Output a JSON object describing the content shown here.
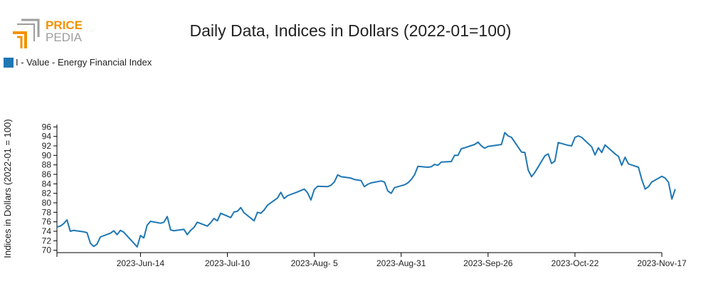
{
  "logo": {
    "text_top": "PRICE",
    "text_bottom": "PEDIA",
    "accent_color": "#f39200",
    "secondary_color": "#9d9d9c"
  },
  "chart_data": {
    "type": "line",
    "title": "Daily Data, Indices in Dollars (2022-01=100)",
    "ylabel": "Indices in Dollars (2022-01 = 100)",
    "xlabel": "",
    "ylim": [
      69.5,
      96.5
    ],
    "yticks": [
      70,
      72,
      74,
      76,
      78,
      80,
      82,
      84,
      86,
      88,
      90,
      92,
      94,
      96
    ],
    "xlim": [
      "2023-05-20",
      "2023-11-17"
    ],
    "xticks": [
      {
        "date": "2023-06-14",
        "label": "2023-Jun-14"
      },
      {
        "date": "2023-07-10",
        "label": "2023-Jul-10"
      },
      {
        "date": "2023-08-05",
        "label": "2023-Aug- 5"
      },
      {
        "date": "2023-08-31",
        "label": "2023-Aug-31"
      },
      {
        "date": "2023-09-26",
        "label": "2023-Sep-26"
      },
      {
        "date": "2023-10-22",
        "label": "2023-Oct-22"
      },
      {
        "date": "2023-11-17",
        "label": "2023-Nov-17"
      }
    ],
    "legend_position": "top-left",
    "series": [
      {
        "name": "I - Value - Energy Financial Index",
        "color": "#1f77b4",
        "points": [
          [
            "2023-05-20",
            74.9
          ],
          [
            "2023-05-21",
            75.1
          ],
          [
            "2023-05-22",
            75.6
          ],
          [
            "2023-05-23",
            76.4
          ],
          [
            "2023-05-24",
            74.0
          ],
          [
            "2023-05-25",
            74.2
          ],
          [
            "2023-05-28",
            73.9
          ],
          [
            "2023-05-29",
            73.7
          ],
          [
            "2023-05-30",
            71.5
          ],
          [
            "2023-05-31",
            70.8
          ],
          [
            "2023-06-01",
            71.3
          ],
          [
            "2023-06-02",
            72.8
          ],
          [
            "2023-06-05",
            73.6
          ],
          [
            "2023-06-06",
            74.1
          ],
          [
            "2023-06-07",
            73.3
          ],
          [
            "2023-06-08",
            74.2
          ],
          [
            "2023-06-09",
            73.8
          ],
          [
            "2023-06-12",
            71.5
          ],
          [
            "2023-06-13",
            70.7
          ],
          [
            "2023-06-14",
            73.1
          ],
          [
            "2023-06-15",
            72.6
          ],
          [
            "2023-06-16",
            75.3
          ],
          [
            "2023-06-17",
            76.1
          ],
          [
            "2023-06-20",
            75.7
          ],
          [
            "2023-06-21",
            75.9
          ],
          [
            "2023-06-22",
            77.1
          ],
          [
            "2023-06-23",
            74.3
          ],
          [
            "2023-06-24",
            74.1
          ],
          [
            "2023-06-27",
            74.4
          ],
          [
            "2023-06-28",
            73.3
          ],
          [
            "2023-06-29",
            74.2
          ],
          [
            "2023-06-30",
            74.8
          ],
          [
            "2023-07-01",
            75.9
          ],
          [
            "2023-07-04",
            75.1
          ],
          [
            "2023-07-05",
            75.8
          ],
          [
            "2023-07-06",
            76.7
          ],
          [
            "2023-07-07",
            76.2
          ],
          [
            "2023-07-08",
            77.8
          ],
          [
            "2023-07-11",
            76.9
          ],
          [
            "2023-07-12",
            78.1
          ],
          [
            "2023-07-13",
            78.2
          ],
          [
            "2023-07-14",
            79.0
          ],
          [
            "2023-07-15",
            77.9
          ],
          [
            "2023-07-18",
            76.2
          ],
          [
            "2023-07-19",
            78.0
          ],
          [
            "2023-07-20",
            77.8
          ],
          [
            "2023-07-21",
            78.5
          ],
          [
            "2023-07-22",
            79.5
          ],
          [
            "2023-07-25",
            81.0
          ],
          [
            "2023-07-26",
            82.2
          ],
          [
            "2023-07-27",
            80.9
          ],
          [
            "2023-07-28",
            81.5
          ],
          [
            "2023-07-31",
            82.3
          ],
          [
            "2023-08-01",
            82.6
          ],
          [
            "2023-08-02",
            82.9
          ],
          [
            "2023-08-03",
            82.1
          ],
          [
            "2023-08-04",
            80.6
          ],
          [
            "2023-08-05",
            82.8
          ],
          [
            "2023-08-06",
            83.5
          ],
          [
            "2023-08-09",
            83.4
          ],
          [
            "2023-08-10",
            83.7
          ],
          [
            "2023-08-11",
            84.4
          ],
          [
            "2023-08-12",
            85.9
          ],
          [
            "2023-08-13",
            85.5
          ],
          [
            "2023-08-16",
            85.2
          ],
          [
            "2023-08-17",
            84.9
          ],
          [
            "2023-08-18",
            84.8
          ],
          [
            "2023-08-19",
            84.7
          ],
          [
            "2023-08-20",
            83.4
          ],
          [
            "2023-08-21",
            83.9
          ],
          [
            "2023-08-22",
            84.2
          ],
          [
            "2023-08-25",
            84.6
          ],
          [
            "2023-08-26",
            84.4
          ],
          [
            "2023-08-27",
            82.5
          ],
          [
            "2023-08-28",
            82.0
          ],
          [
            "2023-08-29",
            83.2
          ],
          [
            "2023-09-01",
            83.8
          ],
          [
            "2023-09-02",
            84.2
          ],
          [
            "2023-09-03",
            84.9
          ],
          [
            "2023-09-04",
            85.9
          ],
          [
            "2023-09-05",
            87.7
          ],
          [
            "2023-09-08",
            87.5
          ],
          [
            "2023-09-09",
            87.6
          ],
          [
            "2023-09-10",
            88.1
          ],
          [
            "2023-09-11",
            87.9
          ],
          [
            "2023-09-12",
            88.6
          ],
          [
            "2023-09-15",
            88.7
          ],
          [
            "2023-09-16",
            90.0
          ],
          [
            "2023-09-17",
            90.0
          ],
          [
            "2023-09-18",
            91.4
          ],
          [
            "2023-09-19",
            91.6
          ],
          [
            "2023-09-22",
            92.3
          ],
          [
            "2023-09-23",
            92.8
          ],
          [
            "2023-09-24",
            92.0
          ],
          [
            "2023-09-25",
            91.5
          ],
          [
            "2023-09-26",
            91.9
          ],
          [
            "2023-09-29",
            92.2
          ],
          [
            "2023-09-30",
            92.3
          ],
          [
            "2023-10-01",
            94.8
          ],
          [
            "2023-10-02",
            94.1
          ],
          [
            "2023-10-03",
            93.8
          ],
          [
            "2023-10-06",
            90.7
          ],
          [
            "2023-10-07",
            90.6
          ],
          [
            "2023-10-08",
            86.9
          ],
          [
            "2023-10-09",
            85.5
          ],
          [
            "2023-10-10",
            86.4
          ],
          [
            "2023-10-13",
            89.9
          ],
          [
            "2023-10-14",
            90.3
          ],
          [
            "2023-10-15",
            88.3
          ],
          [
            "2023-10-16",
            88.8
          ],
          [
            "2023-10-17",
            92.7
          ],
          [
            "2023-10-20",
            92.1
          ],
          [
            "2023-10-21",
            92.0
          ],
          [
            "2023-10-22",
            93.8
          ],
          [
            "2023-10-23",
            94.1
          ],
          [
            "2023-10-24",
            93.8
          ],
          [
            "2023-10-27",
            91.8
          ],
          [
            "2023-10-28",
            90.1
          ],
          [
            "2023-10-29",
            91.6
          ],
          [
            "2023-10-30",
            90.6
          ],
          [
            "2023-10-31",
            92.2
          ],
          [
            "2023-11-03",
            90.3
          ],
          [
            "2023-11-04",
            89.8
          ],
          [
            "2023-11-05",
            87.9
          ],
          [
            "2023-11-06",
            89.6
          ],
          [
            "2023-11-07",
            88.2
          ],
          [
            "2023-11-10",
            87.5
          ],
          [
            "2023-11-11",
            84.9
          ],
          [
            "2023-11-12",
            82.9
          ],
          [
            "2023-11-13",
            83.4
          ],
          [
            "2023-11-14",
            84.4
          ],
          [
            "2023-11-17",
            85.6
          ],
          [
            "2023-11-18",
            85.2
          ],
          [
            "2023-11-19",
            84.3
          ],
          [
            "2023-11-20",
            80.8
          ],
          [
            "2023-11-21",
            82.9
          ]
        ]
      }
    ]
  }
}
